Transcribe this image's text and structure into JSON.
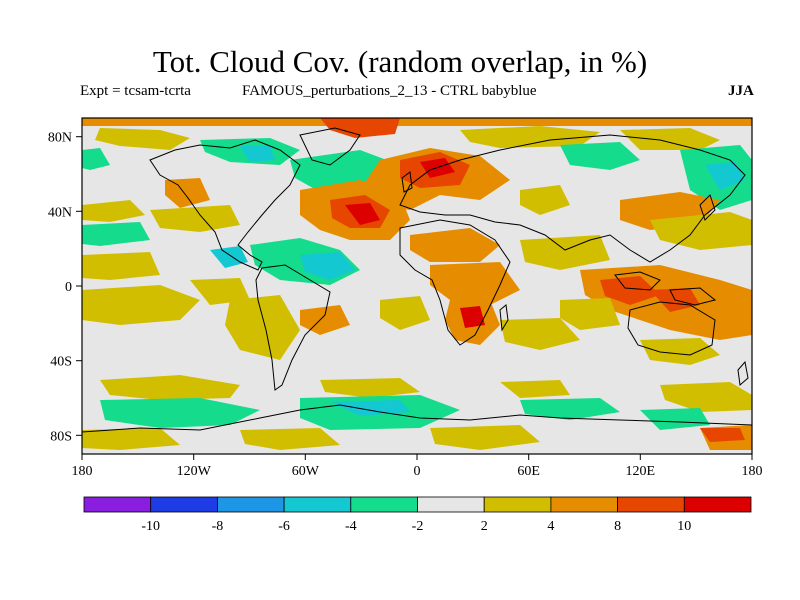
{
  "header": {
    "title": "Tot. Cloud Cov. (random overlap, in %)",
    "experiment": "Expt = tcsam-tcrta",
    "run": "FAMOUS_perturbations_2_13 - CTRL babyblue",
    "season": "JJA"
  },
  "map": {
    "lon_labels": [
      "180",
      "120W",
      "60W",
      "0",
      "60E",
      "120E",
      "180"
    ],
    "lat_labels": [
      "80N",
      "40N",
      "0",
      "40S",
      "80S"
    ]
  },
  "colorbar": {
    "labels": [
      "-10",
      "-8",
      "-6",
      "-4",
      "-2",
      "2",
      "4",
      "8",
      "10"
    ],
    "colors": [
      "#8a1ee0",
      "#1e3ce6",
      "#1e96e6",
      "#14c8d2",
      "#14dc8c",
      "#e6e6e6",
      "#d2be00",
      "#e68c00",
      "#e64600",
      "#dc0000"
    ]
  }
}
